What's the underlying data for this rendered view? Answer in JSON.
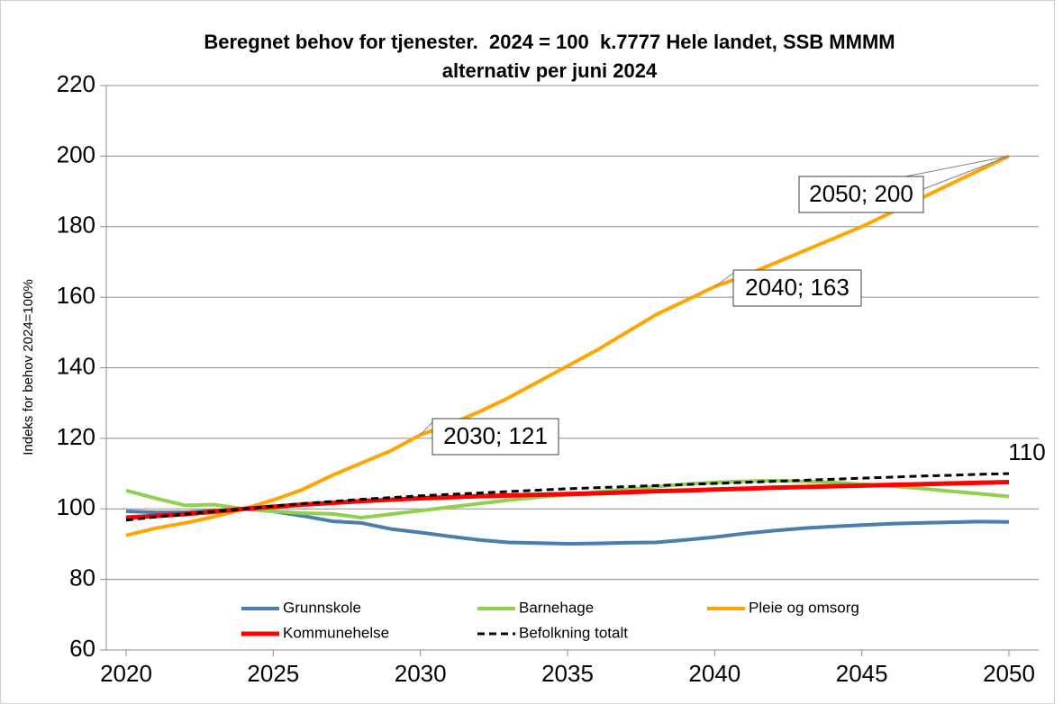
{
  "chart_data": {
    "type": "line",
    "title": [
      "Beregnet behov for tjenester.  2024 = 100  k.7777 Hele landet, SSB MMMM",
      "alternativ per juni 2024"
    ],
    "y_label": "Indeks for behov 2024=100%",
    "x": [
      2020,
      2021,
      2022,
      2023,
      2024,
      2025,
      2026,
      2027,
      2028,
      2029,
      2030,
      2031,
      2032,
      2033,
      2034,
      2035,
      2036,
      2037,
      2038,
      2039,
      2040,
      2041,
      2042,
      2043,
      2044,
      2045,
      2046,
      2047,
      2048,
      2049,
      2050
    ],
    "xlim": [
      2020,
      2050
    ],
    "xticks": [
      2020,
      2025,
      2030,
      2035,
      2040,
      2045,
      2050
    ],
    "ylim": [
      60,
      220
    ],
    "yticks": [
      60,
      80,
      100,
      120,
      140,
      160,
      180,
      200,
      220
    ],
    "grid": true,
    "legend": "bottom",
    "series": [
      {
        "name": "Grunnskole",
        "color": "#4a7eab",
        "width": 4,
        "dashed": false,
        "values": [
          99.3,
          99,
          99,
          99.5,
          100,
          99.3,
          98,
          96.5,
          96,
          94.3,
          93.3,
          92.2,
          91.2,
          90.5,
          90.3,
          90.1,
          90.2,
          90.4,
          90.5,
          91.2,
          92,
          93,
          93.8,
          94.5,
          95,
          95.4,
          95.8,
          96,
          96.2,
          96.4,
          96.3
        ]
      },
      {
        "name": "Barnehage",
        "color": "#8fd14f",
        "width": 4,
        "dashed": false,
        "values": [
          105.2,
          103,
          101,
          101.2,
          100,
          99.3,
          98.8,
          98.6,
          97.5,
          98.5,
          99.5,
          100.5,
          101.5,
          102.5,
          103.3,
          104,
          104.8,
          105.5,
          106.3,
          107,
          107.5,
          107.8,
          108,
          107.8,
          107.5,
          107,
          106.5,
          105.8,
          105,
          104.3,
          103.5
        ]
      },
      {
        "name": "Pleie og omsorg",
        "color": "#ffa500",
        "width": 4,
        "dashed": false,
        "values": [
          92.5,
          94.5,
          96,
          97.8,
          100,
          102.5,
          105.5,
          109.5,
          113,
          116.5,
          121,
          124,
          127.5,
          131.5,
          136,
          140.5,
          145,
          150,
          155,
          159,
          163,
          166,
          169.5,
          173,
          176.5,
          180,
          184,
          188,
          192,
          196,
          200
        ],
        "value_labels": [
          null,
          null,
          null,
          null,
          null,
          null,
          null,
          null,
          null,
          null,
          "2030; 121",
          null,
          null,
          null,
          null,
          null,
          null,
          null,
          null,
          null,
          "2040; 163",
          null,
          null,
          null,
          null,
          null,
          null,
          null,
          null,
          null,
          "2050; 200"
        ]
      },
      {
        "name": "Kommunehelse",
        "color": "#ff0000",
        "width": 5,
        "dashed": false,
        "values": [
          97.5,
          98,
          98.5,
          99.2,
          100,
          100.6,
          101.2,
          101.7,
          102.2,
          102.6,
          103,
          103.3,
          103.6,
          103.8,
          104,
          104.2,
          104.4,
          104.7,
          105,
          105.2,
          105.5,
          105.7,
          106,
          106.2,
          106.4,
          106.6,
          106.8,
          107,
          107.2,
          107.4,
          107.6
        ]
      },
      {
        "name": "Befolkning totalt",
        "color": "#000000",
        "width": 3,
        "dashed": true,
        "values": [
          96.8,
          97.7,
          98.5,
          99.3,
          100,
          100.8,
          101.5,
          102.1,
          102.7,
          103.2,
          103.7,
          104.1,
          104.5,
          104.9,
          105.3,
          105.7,
          106,
          106.3,
          106.6,
          106.9,
          107.2,
          107.5,
          107.8,
          108.1,
          108.4,
          108.7,
          109,
          109.3,
          109.5,
          109.8,
          110
        ],
        "value_labels": [
          null,
          null,
          null,
          null,
          null,
          null,
          null,
          null,
          null,
          null,
          null,
          null,
          null,
          null,
          null,
          null,
          null,
          null,
          null,
          null,
          null,
          null,
          null,
          null,
          null,
          null,
          null,
          null,
          null,
          null,
          "110"
        ]
      }
    ]
  }
}
